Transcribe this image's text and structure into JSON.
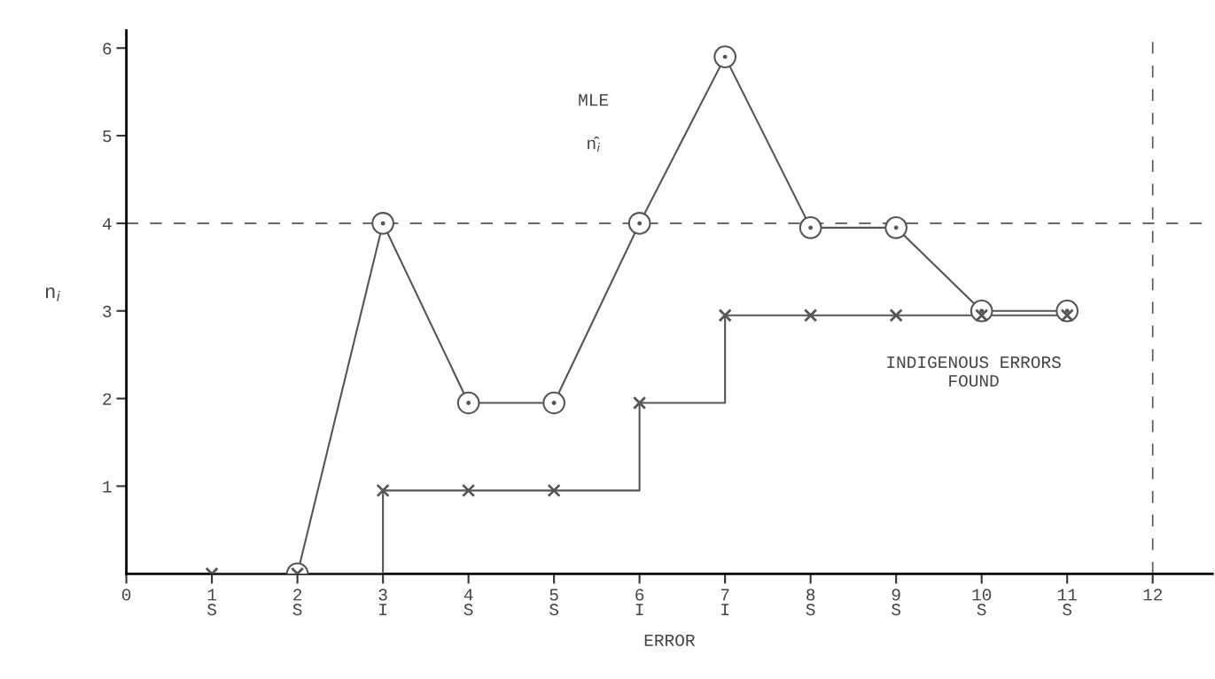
{
  "chart_data": {
    "type": "line",
    "xlabel": "ERROR",
    "ylabel": "n$_{i}$",
    "xlim": [
      0,
      12.7
    ],
    "ylim": [
      0,
      6.2
    ],
    "xticks": [
      0,
      {
        "value": 1,
        "label": "1\nS"
      },
      {
        "value": 2,
        "label": "2\nS"
      },
      {
        "value": 3,
        "label": "3\nI"
      },
      {
        "value": 4,
        "label": "4\nS"
      },
      {
        "value": 5,
        "label": "5\nS"
      },
      {
        "value": 6,
        "label": "6\nI"
      },
      {
        "value": 7,
        "label": "7\nI"
      },
      {
        "value": 8,
        "label": "8\nS"
      },
      {
        "value": 9,
        "label": "9\nS"
      },
      {
        "value": 10,
        "label": "10\nS"
      },
      {
        "value": 11,
        "label": "11\nS"
      },
      12
    ],
    "yticks": [
      1,
      2,
      3,
      4,
      5,
      6
    ],
    "series": [
      {
        "marker": "circle",
        "color": "#555555",
        "x": [
          2,
          3,
          4,
          5,
          6,
          7,
          8,
          9,
          10,
          11
        ],
        "values": [
          0,
          4,
          1.95,
          1.95,
          4,
          5.9,
          3.95,
          3.95,
          3,
          3
        ]
      },
      {
        "type": "step",
        "marker": "cross",
        "color": "#555555",
        "x": [
          1,
          2,
          3,
          4,
          5,
          6,
          7,
          8,
          9,
          10,
          11
        ],
        "values": [
          0,
          0,
          0.95,
          0.95,
          0.95,
          1.95,
          2.95,
          2.95,
          2.95,
          2.95,
          2.95
        ]
      }
    ],
    "ref_lines": [
      {
        "axis": "y",
        "value": 4,
        "line_style": "dashed",
        "color": "#555555"
      },
      {
        "axis": "x",
        "value": 12,
        "line_style": "dashed",
        "color": "#555555"
      }
    ],
    "annotations": [
      "MLE",
      "n̂$_{i}$",
      "INDIGENOUS ERRORS\nFOUND"
    ],
    "grid": false,
    "legend": false
  }
}
